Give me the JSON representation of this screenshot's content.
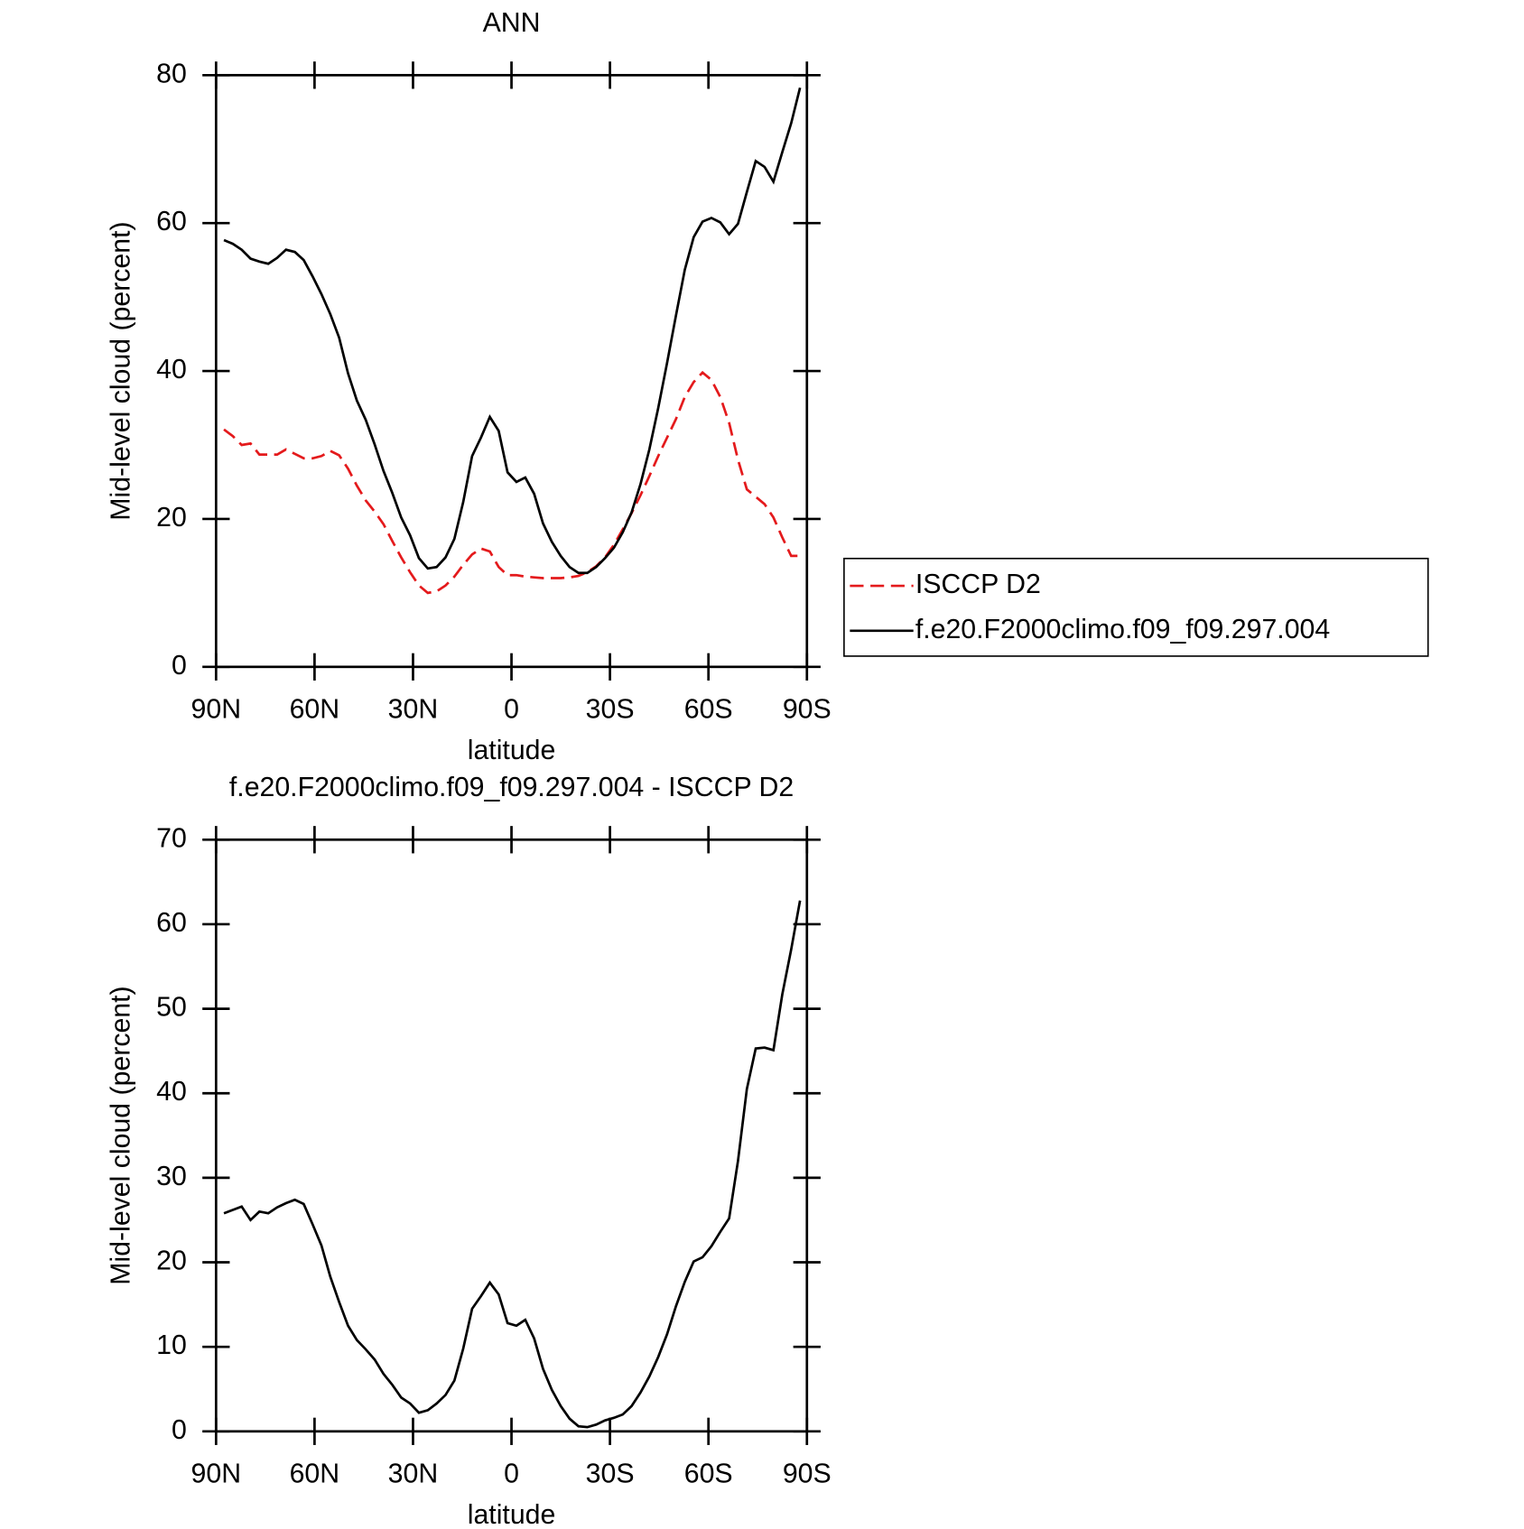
{
  "chart_data": [
    {
      "type": "line",
      "title": "ANN",
      "xlabel": "latitude",
      "ylabel": "Mid-level cloud (percent)",
      "x": [
        87.6,
        84.9,
        82.2,
        79.5,
        76.8,
        74.1,
        71.4,
        68.7,
        66.0,
        63.3,
        60.6,
        57.9,
        55.2,
        52.5,
        49.8,
        47.1,
        44.4,
        41.7,
        39.0,
        36.3,
        33.6,
        30.9,
        28.2,
        25.5,
        22.8,
        20.1,
        17.4,
        14.7,
        12.0,
        9.3,
        6.6,
        3.9,
        1.2,
        -1.5,
        -4.2,
        -6.9,
        -9.6,
        -12.3,
        -15.0,
        -17.7,
        -20.4,
        -23.1,
        -25.8,
        -28.5,
        -31.2,
        -33.9,
        -36.6,
        -39.3,
        -42.0,
        -44.7,
        -47.4,
        -50.1,
        -52.8,
        -55.5,
        -58.2,
        -60.9,
        -63.6,
        -66.3,
        -69.0,
        -71.7,
        -74.4,
        -77.1,
        -79.8,
        -82.5,
        -85.2,
        -87.9
      ],
      "series": [
        {
          "name": "ISCCP D2",
          "color": "#e41a1c",
          "dash": true,
          "values": [
            32.1,
            31.2,
            30.0,
            30.2,
            28.7,
            28.7,
            28.7,
            29.4,
            28.8,
            28.2,
            28.2,
            28.5,
            29.2,
            28.6,
            26.8,
            24.5,
            22.5,
            21.0,
            19.3,
            17.0,
            14.8,
            12.8,
            11.0,
            10.0,
            10.2,
            11.0,
            12.2,
            13.8,
            15.2,
            16.0,
            15.6,
            13.5,
            12.4,
            12.4,
            12.2,
            12.1,
            12.0,
            12.0,
            12.0,
            12.1,
            12.3,
            12.8,
            13.6,
            14.8,
            16.5,
            18.6,
            20.8,
            23.2,
            25.8,
            28.5,
            31.0,
            33.5,
            36.5,
            38.5,
            39.8,
            38.8,
            36.5,
            33.0,
            28.0,
            24.0,
            23.0,
            22.0,
            20.2,
            17.5,
            15.0,
            15.0
          ]
        },
        {
          "name": "f.e20.F2000climo.f09_f09.297.004",
          "color": "#000000",
          "dash": false,
          "values": [
            57.7,
            57.2,
            56.4,
            55.2,
            54.8,
            54.5,
            55.3,
            56.4,
            56.1,
            55.0,
            52.8,
            50.4,
            47.7,
            44.5,
            39.7,
            36.0,
            33.4,
            30.1,
            26.5,
            23.5,
            20.2,
            17.8,
            14.7,
            13.3,
            13.5,
            14.8,
            17.3,
            22.3,
            28.5,
            31.0,
            33.8,
            31.9,
            26.3,
            25.0,
            25.6,
            23.4,
            19.4,
            16.9,
            15.0,
            13.5,
            12.7,
            12.7,
            13.5,
            14.7,
            16.1,
            18.2,
            20.9,
            24.7,
            29.4,
            35.0,
            41.1,
            47.5,
            53.7,
            58.1,
            60.2,
            60.7,
            60.1,
            58.5,
            59.9,
            64.2,
            68.4,
            67.6,
            65.6,
            69.6,
            73.5,
            78.3
          ]
        }
      ],
      "xlim": [
        90,
        -90
      ],
      "xticks": [
        {
          "value": 90,
          "label": "90N"
        },
        {
          "value": 60,
          "label": "60N"
        },
        {
          "value": 30,
          "label": "30N"
        },
        0,
        {
          "value": -30,
          "label": "30S"
        },
        {
          "value": -60,
          "label": "60S"
        },
        {
          "value": -90,
          "label": "90S"
        }
      ],
      "ylim": [
        0,
        80
      ],
      "yticks": [
        0,
        20,
        40,
        60,
        80
      ],
      "legend": "right"
    },
    {
      "type": "line",
      "title": "f.e20.F2000climo.f09_f09.297.004 - ISCCP D2",
      "xlabel": "latitude",
      "ylabel": "Mid-level cloud (percent)",
      "x": [
        87.6,
        84.9,
        82.2,
        79.5,
        76.8,
        74.1,
        71.4,
        68.7,
        66.0,
        63.3,
        60.6,
        57.9,
        55.2,
        52.5,
        49.8,
        47.1,
        44.4,
        41.7,
        39.0,
        36.3,
        33.6,
        30.9,
        28.2,
        25.5,
        22.8,
        20.1,
        17.4,
        14.7,
        12.0,
        9.3,
        6.6,
        3.9,
        1.2,
        -1.5,
        -4.2,
        -6.9,
        -9.6,
        -12.3,
        -15.0,
        -17.7,
        -20.4,
        -23.1,
        -25.8,
        -28.5,
        -31.2,
        -33.9,
        -36.6,
        -39.3,
        -42.0,
        -44.7,
        -47.4,
        -50.1,
        -52.8,
        -55.5,
        -58.2,
        -60.9,
        -63.6,
        -66.3,
        -69.0,
        -71.7,
        -74.4,
        -77.1,
        -79.8,
        -82.5,
        -85.2,
        -87.9
      ],
      "color": "#000000",
      "values": [
        25.8,
        26.2,
        26.6,
        25.0,
        26.0,
        25.8,
        26.5,
        27.0,
        27.4,
        26.9,
        24.5,
        22.0,
        18.3,
        15.3,
        12.5,
        10.8,
        9.7,
        8.5,
        6.8,
        5.5,
        4.0,
        3.3,
        2.2,
        2.5,
        3.3,
        4.3,
        6.0,
        9.8,
        14.5,
        16.0,
        17.6,
        16.2,
        12.8,
        12.5,
        13.2,
        11.0,
        7.4,
        4.9,
        3.0,
        1.5,
        0.6,
        0.5,
        0.8,
        1.3,
        1.6,
        2.0,
        3.0,
        4.6,
        6.5,
        8.8,
        11.5,
        14.8,
        17.7,
        20.1,
        20.6,
        21.9,
        23.6,
        25.2,
        32.0,
        40.5,
        45.3,
        45.4,
        45.1,
        51.7,
        57.0,
        62.8
      ],
      "xlim": [
        90,
        -90
      ],
      "xticks": [
        {
          "value": 90,
          "label": "90N"
        },
        {
          "value": 60,
          "label": "60N"
        },
        {
          "value": 30,
          "label": "30N"
        },
        0,
        {
          "value": -30,
          "label": "30S"
        },
        {
          "value": -60,
          "label": "60S"
        },
        {
          "value": -90,
          "label": "90S"
        }
      ],
      "ylim": [
        0,
        70
      ],
      "yticks": [
        0,
        10,
        20,
        30,
        40,
        50,
        60,
        70
      ]
    }
  ]
}
